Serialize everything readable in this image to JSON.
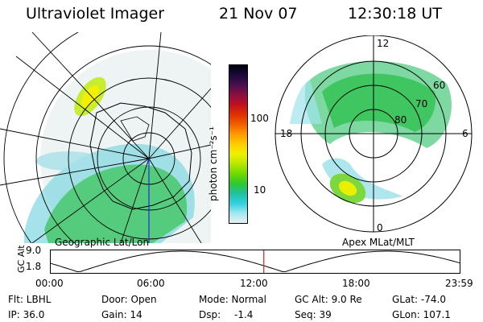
{
  "header": {
    "instrument": "Ultraviolet Imager",
    "date": "21 Nov 07",
    "time": "12:30:18 UT"
  },
  "geo_panel": {
    "label": "Geographic Lat/Lon"
  },
  "mag_panel": {
    "label": "Apex MLat/MLT",
    "mlt_labels": [
      "12",
      "18",
      "6",
      "0"
    ],
    "lat_labels": [
      "60",
      "70",
      "80"
    ]
  },
  "colorbar": {
    "unit_label": "photon cm⁻²s⁻¹",
    "ticks": [
      "100",
      "10"
    ],
    "colors": [
      "#000010",
      "#1a0a3a",
      "#4a1050",
      "#8a1040",
      "#c01020",
      "#e03000",
      "#f06000",
      "#ff9a00",
      "#ffcc00",
      "#f0f000",
      "#b8e800",
      "#70d800",
      "#30c830",
      "#20c0a0",
      "#30d0e0",
      "#a0e8f0",
      "#e8f0f0"
    ]
  },
  "gc_alt_plot": {
    "axis_label": "GC Alt",
    "y_ticks": [
      "9.0",
      "1.8"
    ],
    "x_ticks": [
      "00:00",
      "06:00",
      "12:00",
      "18:00",
      "23:59"
    ],
    "marker_time_hours": 12.505,
    "marker_color": "#d02020"
  },
  "info": {
    "filter": "Flt: LBHL",
    "ip": "IP: 36.0",
    "door": "Door: Open",
    "gain": "Gain: 14",
    "mode": "Mode: Normal",
    "dsp_label": "Dsp:",
    "dsp_value": "-1.4",
    "gc_alt": "GC Alt: 9.0 Re",
    "seq": "Seq: 39",
    "glat": "GLat: -74.0",
    "glon": "GLon: 107.1"
  }
}
